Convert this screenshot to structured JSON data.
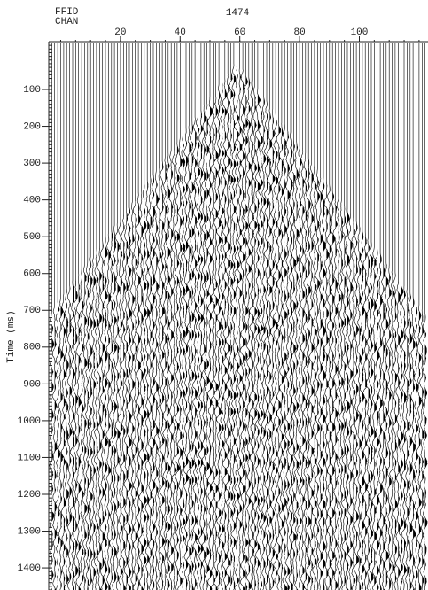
{
  "header": {
    "ffid_label": "FFID",
    "chan_label": "CHAN",
    "ffid": "1474"
  },
  "chart_data": {
    "type": "seismic",
    "ylabel": "Time (ms)",
    "xlim": [
      -4,
      123
    ],
    "xticks": [
      20,
      40,
      60,
      80,
      100
    ],
    "ylim": [
      -30,
      1460
    ],
    "yticks": [
      100,
      200,
      300,
      400,
      500,
      600,
      700,
      800,
      900,
      1000,
      1100,
      1200,
      1300,
      1400
    ],
    "color": "#000000"
  }
}
